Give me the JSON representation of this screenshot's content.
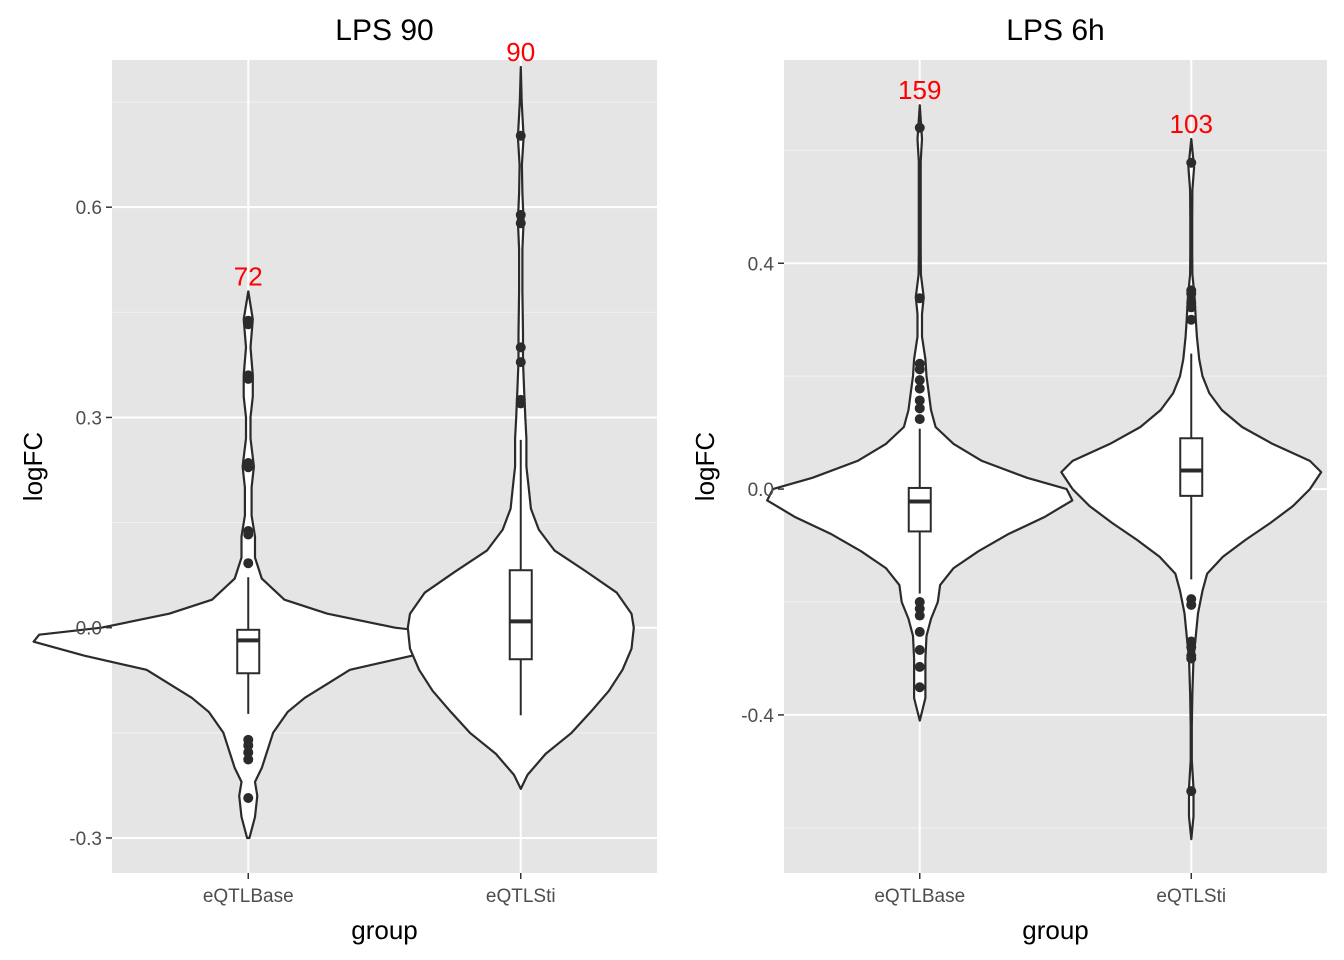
{
  "chart_data": [
    {
      "type": "violin",
      "title": "LPS 90",
      "xlabel": "group",
      "ylabel": "logFC",
      "categories": [
        "eQTLBase",
        "eQTLSti"
      ],
      "yticks": [
        -0.3,
        0.0,
        0.3,
        0.6
      ],
      "ytick_labels": [
        "-0.3",
        "0.0",
        "0.3",
        "0.6"
      ],
      "ylim": [
        -0.35,
        0.81
      ],
      "grid": true,
      "series": [
        {
          "category": "eQTLBase",
          "count_label": "72",
          "box": {
            "q1": -0.065,
            "median": -0.018,
            "q3": -0.003,
            "whisker_low": -0.123,
            "whisker_high": 0.072
          },
          "outliers": [
            0.438,
            0.433,
            0.36,
            0.355,
            0.235,
            0.229,
            0.138,
            0.133,
            0.092,
            -0.16,
            -0.168,
            -0.178,
            -0.188,
            -0.243
          ],
          "violin_range": [
            -0.3,
            0.48
          ],
          "density": [
            [
              -0.3,
              0.01
            ],
            [
              -0.27,
              0.06
            ],
            [
              -0.24,
              0.08
            ],
            [
              -0.22,
              0.06
            ],
            [
              -0.2,
              0.12
            ],
            [
              -0.17,
              0.18
            ],
            [
              -0.15,
              0.22
            ],
            [
              -0.12,
              0.35
            ],
            [
              -0.1,
              0.5
            ],
            [
              -0.08,
              0.7
            ],
            [
              -0.06,
              0.9
            ],
            [
              -0.04,
              1.45
            ],
            [
              -0.02,
              1.9
            ],
            [
              -0.01,
              1.85
            ],
            [
              0.0,
              1.3
            ],
            [
              0.02,
              0.7
            ],
            [
              0.04,
              0.32
            ],
            [
              0.07,
              0.12
            ],
            [
              0.1,
              0.06
            ],
            [
              0.13,
              0.06
            ],
            [
              0.16,
              0.03
            ],
            [
              0.2,
              0.03
            ],
            [
              0.23,
              0.05
            ],
            [
              0.27,
              0.02
            ],
            [
              0.3,
              0.02
            ],
            [
              0.33,
              0.04
            ],
            [
              0.36,
              0.04
            ],
            [
              0.4,
              0.02
            ],
            [
              0.44,
              0.04
            ],
            [
              0.48,
              0.0
            ]
          ]
        },
        {
          "category": "eQTLSti",
          "count_label": "90",
          "box": {
            "q1": -0.045,
            "median": 0.009,
            "q3": 0.082,
            "whisker_low": -0.125,
            "whisker_high": 0.268
          },
          "outliers": [
            0.702,
            0.589,
            0.577,
            0.4,
            0.379,
            0.325,
            0.32
          ],
          "violin_range": [
            -0.23,
            0.8
          ],
          "density": [
            [
              -0.23,
              0.0
            ],
            [
              -0.21,
              0.06
            ],
            [
              -0.18,
              0.22
            ],
            [
              -0.15,
              0.45
            ],
            [
              -0.12,
              0.62
            ],
            [
              -0.09,
              0.78
            ],
            [
              -0.06,
              0.9
            ],
            [
              -0.03,
              0.98
            ],
            [
              0.0,
              1.0
            ],
            [
              0.02,
              0.98
            ],
            [
              0.05,
              0.85
            ],
            [
              0.08,
              0.58
            ],
            [
              0.11,
              0.3
            ],
            [
              0.14,
              0.16
            ],
            [
              0.17,
              0.09
            ],
            [
              0.2,
              0.07
            ],
            [
              0.23,
              0.05
            ],
            [
              0.27,
              0.05
            ],
            [
              0.3,
              0.04
            ],
            [
              0.34,
              0.03
            ],
            [
              0.38,
              0.02
            ],
            [
              0.42,
              0.02
            ],
            [
              0.48,
              0.015
            ],
            [
              0.54,
              0.015
            ],
            [
              0.58,
              0.025
            ],
            [
              0.62,
              0.015
            ],
            [
              0.66,
              0.01
            ],
            [
              0.7,
              0.025
            ],
            [
              0.75,
              0.008
            ],
            [
              0.8,
              0.0
            ]
          ]
        }
      ]
    },
    {
      "type": "violin",
      "title": "LPS 6h",
      "xlabel": "group",
      "ylabel": "logFC",
      "categories": [
        "eQTLBase",
        "eQTLSti"
      ],
      "yticks": [
        -0.4,
        0.0,
        0.4
      ],
      "ytick_labels": [
        "-0.4",
        "0.0",
        "0.4"
      ],
      "ylim": [
        -0.68,
        0.76
      ],
      "grid": true,
      "series": [
        {
          "category": "eQTLBase",
          "count_label": "159",
          "box": {
            "q1": -0.075,
            "median": -0.022,
            "q3": 0.002,
            "whisker_low": -0.185,
            "whisker_high": 0.107
          },
          "outliers": [
            0.64,
            0.338,
            0.222,
            0.212,
            0.193,
            0.178,
            0.157,
            0.143,
            0.124,
            -0.2,
            -0.212,
            -0.224,
            -0.253,
            -0.285,
            -0.315,
            -0.351
          ],
          "violin_range": [
            -0.41,
            0.68
          ],
          "density": [
            [
              -0.41,
              0.0
            ],
            [
              -0.37,
              0.05
            ],
            [
              -0.33,
              0.05
            ],
            [
              -0.3,
              0.05
            ],
            [
              -0.26,
              0.06
            ],
            [
              -0.23,
              0.1
            ],
            [
              -0.2,
              0.16
            ],
            [
              -0.17,
              0.18
            ],
            [
              -0.14,
              0.3
            ],
            [
              -0.11,
              0.52
            ],
            [
              -0.08,
              0.78
            ],
            [
              -0.05,
              1.1
            ],
            [
              -0.02,
              1.35
            ],
            [
              0.0,
              1.3
            ],
            [
              0.02,
              0.95
            ],
            [
              0.05,
              0.55
            ],
            [
              0.08,
              0.3
            ],
            [
              0.11,
              0.14
            ],
            [
              0.14,
              0.1
            ],
            [
              0.17,
              0.08
            ],
            [
              0.2,
              0.06
            ],
            [
              0.23,
              0.05
            ],
            [
              0.27,
              0.02
            ],
            [
              0.31,
              0.02
            ],
            [
              0.34,
              0.035
            ],
            [
              0.38,
              0.01
            ],
            [
              0.42,
              0.008
            ],
            [
              0.5,
              0.008
            ],
            [
              0.58,
              0.008
            ],
            [
              0.62,
              0.02
            ],
            [
              0.68,
              0.0
            ]
          ]
        },
        {
          "category": "eQTLSti",
          "count_label": "103",
          "box": {
            "q1": -0.012,
            "median": 0.033,
            "q3": 0.09,
            "whisker_low": -0.16,
            "whisker_high": 0.24
          },
          "outliers": [
            0.578,
            0.352,
            0.346,
            0.33,
            0.322,
            0.3,
            -0.195,
            -0.205,
            -0.27,
            -0.28,
            -0.295,
            -0.3,
            -0.535
          ],
          "violin_range": [
            -0.62,
            0.62
          ],
          "density": [
            [
              -0.62,
              0.0
            ],
            [
              -0.58,
              0.02
            ],
            [
              -0.53,
              0.02
            ],
            [
              -0.48,
              0.005
            ],
            [
              -0.42,
              0.005
            ],
            [
              -0.36,
              0.01
            ],
            [
              -0.3,
              0.02
            ],
            [
              -0.26,
              0.04
            ],
            [
              -0.22,
              0.06
            ],
            [
              -0.18,
              0.1
            ],
            [
              -0.15,
              0.14
            ],
            [
              -0.12,
              0.28
            ],
            [
              -0.09,
              0.48
            ],
            [
              -0.06,
              0.7
            ],
            [
              -0.03,
              0.9
            ],
            [
              0.0,
              1.05
            ],
            [
              0.03,
              1.15
            ],
            [
              0.05,
              1.05
            ],
            [
              0.08,
              0.72
            ],
            [
              0.11,
              0.45
            ],
            [
              0.14,
              0.27
            ],
            [
              0.17,
              0.16
            ],
            [
              0.2,
              0.1
            ],
            [
              0.23,
              0.07
            ],
            [
              0.27,
              0.05
            ],
            [
              0.3,
              0.04
            ],
            [
              0.34,
              0.03
            ],
            [
              0.38,
              0.01
            ],
            [
              0.42,
              0.008
            ],
            [
              0.48,
              0.008
            ],
            [
              0.53,
              0.01
            ],
            [
              0.57,
              0.025
            ],
            [
              0.62,
              0.0
            ]
          ]
        }
      ]
    }
  ]
}
